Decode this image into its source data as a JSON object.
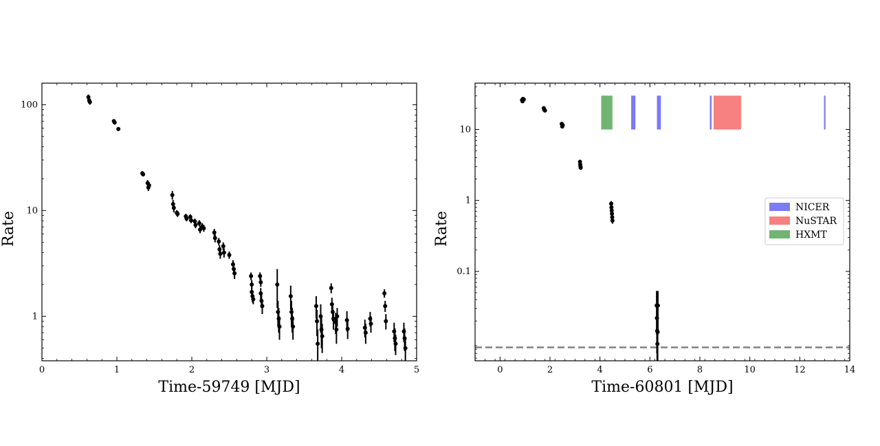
{
  "chart_data": [
    {
      "type": "scatter",
      "xlabel": "Time-59749 [MJD]",
      "ylabel": "Rate",
      "xlim": [
        0,
        5
      ],
      "ylim": [
        0.38,
        160
      ],
      "yscale": "log",
      "xticks": [
        0,
        1,
        2,
        3,
        4,
        5
      ],
      "xtick_labels": [
        "0",
        "1",
        "2",
        "3",
        "4",
        "5"
      ],
      "yticks": [
        1,
        10,
        100
      ],
      "ytick_labels": [
        "1",
        "10",
        "100"
      ],
      "grid": false,
      "series": [
        {
          "color": "#000000",
          "points": [
            [
              0.62,
              118,
              7
            ],
            [
              0.63,
              110,
              6
            ],
            [
              0.64,
              106,
              6
            ],
            [
              0.96,
              70,
              3
            ],
            [
              0.97,
              68,
              3
            ],
            [
              1.02,
              59,
              2
            ],
            [
              1.34,
              22.5,
              1
            ],
            [
              1.35,
              22,
              1
            ],
            [
              1.41,
              18.2,
              1.2
            ],
            [
              1.42,
              16.5,
              1.2
            ],
            [
              1.43,
              17.3,
              1.2
            ],
            [
              1.74,
              14,
              1.3
            ],
            [
              1.75,
              11.5,
              1.1
            ],
            [
              1.76,
              10.6,
              1
            ],
            [
              1.8,
              9.5,
              0.6
            ],
            [
              1.81,
              9.3,
              0.6
            ],
            [
              1.92,
              8.8,
              0.5
            ],
            [
              1.93,
              8.4,
              0.5
            ],
            [
              1.98,
              8.7,
              0.5
            ],
            [
              1.99,
              8.1,
              0.5
            ],
            [
              2.04,
              7.9,
              0.5
            ],
            [
              2.05,
              7.3,
              0.5
            ],
            [
              2.1,
              7.6,
              0.5
            ],
            [
              2.11,
              6.6,
              0.5
            ],
            [
              2.14,
              7.1,
              0.5
            ],
            [
              2.16,
              6.8,
              0.5
            ],
            [
              2.3,
              6.2,
              0.5
            ],
            [
              2.31,
              5.5,
              0.5
            ],
            [
              2.36,
              5.1,
              0.4
            ],
            [
              2.37,
              4.3,
              0.4
            ],
            [
              2.38,
              3.9,
              0.4
            ],
            [
              2.42,
              4.6,
              0.4
            ],
            [
              2.43,
              4.0,
              0.4
            ],
            [
              2.5,
              3.8,
              0.3
            ],
            [
              2.55,
              3.1,
              0.3
            ],
            [
              2.56,
              2.8,
              0.3
            ],
            [
              2.57,
              2.55,
              0.3
            ],
            [
              2.79,
              2.4,
              0.2
            ],
            [
              2.8,
              2.0,
              0.2
            ],
            [
              2.8,
              1.7,
              0.2
            ],
            [
              2.81,
              1.55,
              0.2
            ],
            [
              2.82,
              1.45,
              0.15
            ],
            [
              2.91,
              2.4,
              0.2
            ],
            [
              2.92,
              2.1,
              0.2
            ],
            [
              2.92,
              1.65,
              0.2
            ],
            [
              2.93,
              1.4,
              0.2
            ],
            [
              2.94,
              1.25,
              0.2
            ],
            [
              3.14,
              2.0,
              0.8
            ],
            [
              3.15,
              1.1,
              0.3
            ],
            [
              3.16,
              0.95,
              0.25
            ],
            [
              3.17,
              0.8,
              0.2
            ],
            [
              3.32,
              1.55,
              0.4
            ],
            [
              3.33,
              1.1,
              0.3
            ],
            [
              3.34,
              0.95,
              0.25
            ],
            [
              3.35,
              0.8,
              0.2
            ],
            [
              3.66,
              1.25,
              0.3
            ],
            [
              3.67,
              0.9,
              0.25
            ],
            [
              3.68,
              0.55,
              0.2
            ],
            [
              3.72,
              1.0,
              0.3
            ],
            [
              3.73,
              0.75,
              0.25
            ],
            [
              3.74,
              0.65,
              0.2
            ],
            [
              3.86,
              1.85,
              0.2
            ],
            [
              3.87,
              1.3,
              0.2
            ],
            [
              3.88,
              1.1,
              0.2
            ],
            [
              3.89,
              0.95,
              0.2
            ],
            [
              3.92,
              0.88,
              0.2
            ],
            [
              3.93,
              0.75,
              0.2
            ],
            [
              3.94,
              1.0,
              0.2
            ],
            [
              4.07,
              0.92,
              0.2
            ],
            [
              4.08,
              0.76,
              0.15
            ],
            [
              4.31,
              0.78,
              0.15
            ],
            [
              4.32,
              0.7,
              0.15
            ],
            [
              4.38,
              0.95,
              0.15
            ],
            [
              4.39,
              0.85,
              0.15
            ],
            [
              4.57,
              1.65,
              0.15
            ],
            [
              4.58,
              1.25,
              0.15
            ],
            [
              4.59,
              0.9,
              0.15
            ],
            [
              4.7,
              0.72,
              0.15
            ],
            [
              4.71,
              0.62,
              0.15
            ],
            [
              4.72,
              0.55,
              0.12
            ],
            [
              4.83,
              0.72,
              0.15
            ],
            [
              4.84,
              0.62,
              0.15
            ],
            [
              4.85,
              0.5,
              0.12
            ]
          ]
        }
      ]
    },
    {
      "type": "scatter",
      "xlabel": "Time-60801 [MJD]",
      "ylabel": "Rate",
      "xlim": [
        -1,
        14
      ],
      "ylim": [
        0.0055,
        45
      ],
      "yscale": "log",
      "xticks": [
        0,
        2,
        4,
        6,
        8,
        10,
        12,
        14
      ],
      "xtick_labels": [
        "0",
        "2",
        "4",
        "6",
        "8",
        "10",
        "12",
        "14"
      ],
      "yticks": [
        0.1,
        1,
        10
      ],
      "ytick_labels": [
        "0.1",
        "1",
        "10"
      ],
      "grid": false,
      "legend": {
        "placement": "center-right",
        "entries": [
          {
            "label": "NICER",
            "color": "#7b7bf5"
          },
          {
            "label": "NuSTAR",
            "color": "#f78080"
          },
          {
            "label": "HXMT",
            "color": "#72b472"
          }
        ]
      },
      "bands": [
        {
          "instrument": "HXMT",
          "color": "#72b472",
          "x0": 4.05,
          "x1": 4.5,
          "y0": 10,
          "y1": 30
        },
        {
          "instrument": "NICER",
          "color": "#7b7bf5",
          "x0": 5.25,
          "x1": 5.42,
          "y0": 10,
          "y1": 30
        },
        {
          "instrument": "NICER",
          "color": "#7b7bf5",
          "x0": 6.28,
          "x1": 6.44,
          "y0": 10,
          "y1": 30
        },
        {
          "instrument": "NICER",
          "color": "#7b7bf5",
          "x0": 8.4,
          "x1": 8.47,
          "y0": 10,
          "y1": 30
        },
        {
          "instrument": "NuSTAR",
          "color": "#f78080",
          "x0": 8.55,
          "x1": 9.65,
          "y0": 10,
          "y1": 30
        },
        {
          "instrument": "NICER",
          "color": "#7b7bf5",
          "x0": 12.97,
          "x1": 13.03,
          "y0": 10,
          "y1": 30
        }
      ],
      "hline": {
        "y": 0.0085,
        "style": "dashed",
        "color": "#808080"
      },
      "series": [
        {
          "color": "#000000",
          "points": [
            [
              0.88,
              26,
              1
            ],
            [
              0.9,
              25,
              1
            ],
            [
              0.92,
              27,
              1
            ],
            [
              0.95,
              26.5,
              1
            ],
            [
              1.75,
              20,
              0.8
            ],
            [
              1.77,
              19,
              0.8
            ],
            [
              1.8,
              18.5,
              0.8
            ],
            [
              2.47,
              12,
              0.5
            ],
            [
              2.49,
              11,
              0.5
            ],
            [
              2.51,
              11.5,
              0.5
            ],
            [
              3.2,
              3.5,
              0.25
            ],
            [
              3.21,
              3.2,
              0.25
            ],
            [
              3.22,
              3.0,
              0.25
            ],
            [
              3.23,
              2.9,
              0.2
            ],
            [
              4.45,
              0.9,
              0.08
            ],
            [
              4.46,
              0.8,
              0.08
            ],
            [
              4.47,
              0.72,
              0.06
            ],
            [
              4.48,
              0.65,
              0.06
            ],
            [
              4.49,
              0.58,
              0.05
            ],
            [
              4.5,
              0.52,
              0.05
            ],
            [
              6.27,
              0.033,
              0.02
            ],
            [
              6.28,
              0.022,
              0.015
            ],
            [
              6.29,
              0.0145,
              0.012
            ],
            [
              6.3,
              0.0095,
              0.01
            ],
            [
              6.31,
              0.014,
              0.01
            ],
            [
              6.32,
              0.033,
              0.02
            ]
          ]
        }
      ]
    }
  ]
}
